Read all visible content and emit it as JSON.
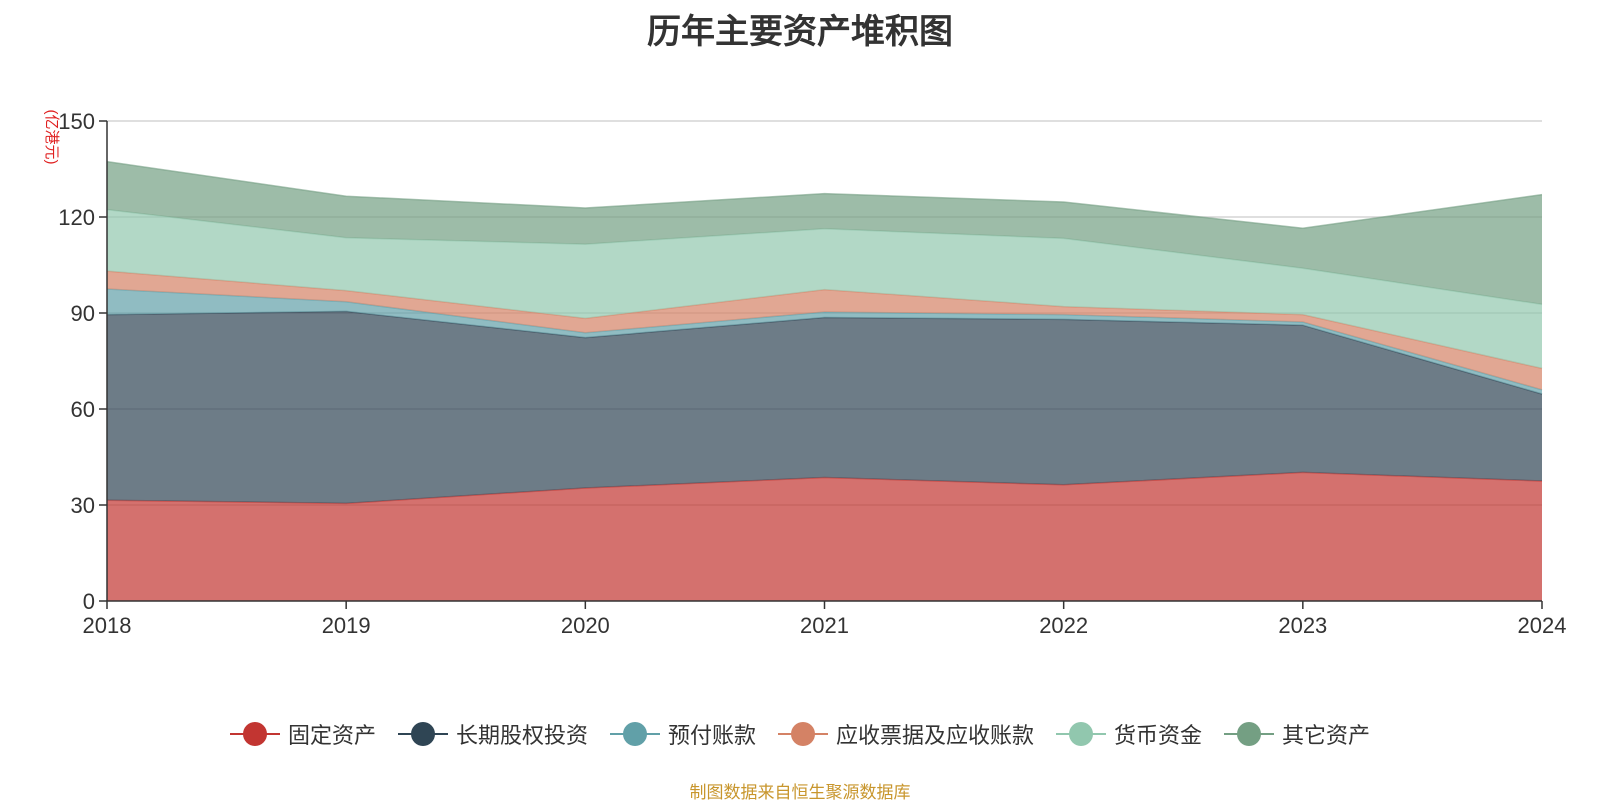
{
  "chart_data": {
    "type": "area",
    "stacked": true,
    "title": "历年主要资产堆积图",
    "ylabel": "(亿港元)",
    "xlabel": "",
    "categories": [
      "2018",
      "2019",
      "2020",
      "2021",
      "2022",
      "2023",
      "2024"
    ],
    "ylim": [
      0,
      150
    ],
    "yticks": [
      0,
      30,
      60,
      90,
      120,
      150
    ],
    "grid": true,
    "legend_position": "bottom",
    "series": [
      {
        "name": "固定资产",
        "color": "#c23531",
        "values": [
          31.5,
          30.5,
          35.3,
          38.6,
          36.3,
          40.2,
          37.5
        ]
      },
      {
        "name": "长期股权投资",
        "color": "#2f4554",
        "values": [
          58.0,
          60.0,
          47.0,
          50.0,
          51.7,
          46.0,
          27.2
        ]
      },
      {
        "name": "预付账款",
        "color": "#61a0a8",
        "values": [
          8.0,
          3.0,
          1.5,
          1.7,
          1.5,
          1.0,
          1.3
        ]
      },
      {
        "name": "应收票据及应收账款",
        "color": "#d48265",
        "values": [
          5.6,
          3.5,
          4.5,
          7.0,
          2.5,
          2.3,
          6.7
        ]
      },
      {
        "name": "货币资金",
        "color": "#91c7ae",
        "values": [
          19.2,
          16.5,
          23.2,
          19.0,
          21.3,
          14.5,
          20.0
        ]
      },
      {
        "name": "其它资产",
        "color": "#749f83",
        "values": [
          15.0,
          13.0,
          11.3,
          11.0,
          11.4,
          12.5,
          34.3
        ]
      }
    ]
  },
  "source_note": "制图数据来自恒生聚源数据库"
}
